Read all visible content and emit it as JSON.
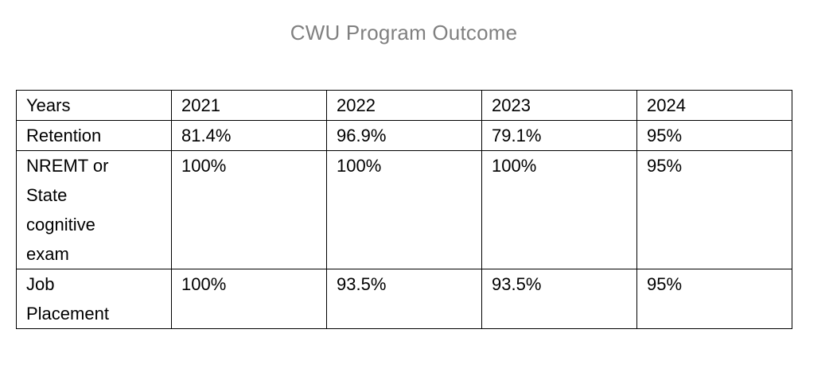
{
  "title": "CWU Program Outcome",
  "colors": {
    "title_text": "#808080",
    "table_border": "#000000",
    "cell_text": "#000000",
    "background": "#ffffff"
  },
  "table": {
    "header": [
      "Years",
      "2021",
      "2022",
      "2023",
      "2024"
    ],
    "rows": [
      {
        "label": "Retention",
        "values": [
          "81.4%",
          "96.9%",
          "79.1%",
          "95%"
        ]
      },
      {
        "label": "NREMT or\nState\ncognitive\nexam",
        "values": [
          "100%",
          "100%",
          "100%",
          "95%"
        ]
      },
      {
        "label": "Job\nPlacement",
        "values": [
          "100%",
          "93.5%",
          "93.5%",
          "95%"
        ]
      }
    ]
  },
  "chart_data": {
    "type": "table",
    "title": "CWU Program Outcome",
    "categories": [
      "2021",
      "2022",
      "2023",
      "2024"
    ],
    "series": [
      {
        "name": "Retention",
        "values": [
          81.4,
          96.9,
          79.1,
          95
        ]
      },
      {
        "name": "NREMT or State cognitive exam",
        "values": [
          100,
          100,
          100,
          95
        ]
      },
      {
        "name": "Job Placement",
        "values": [
          100,
          93.5,
          93.5,
          95
        ]
      }
    ],
    "unit": "%"
  }
}
